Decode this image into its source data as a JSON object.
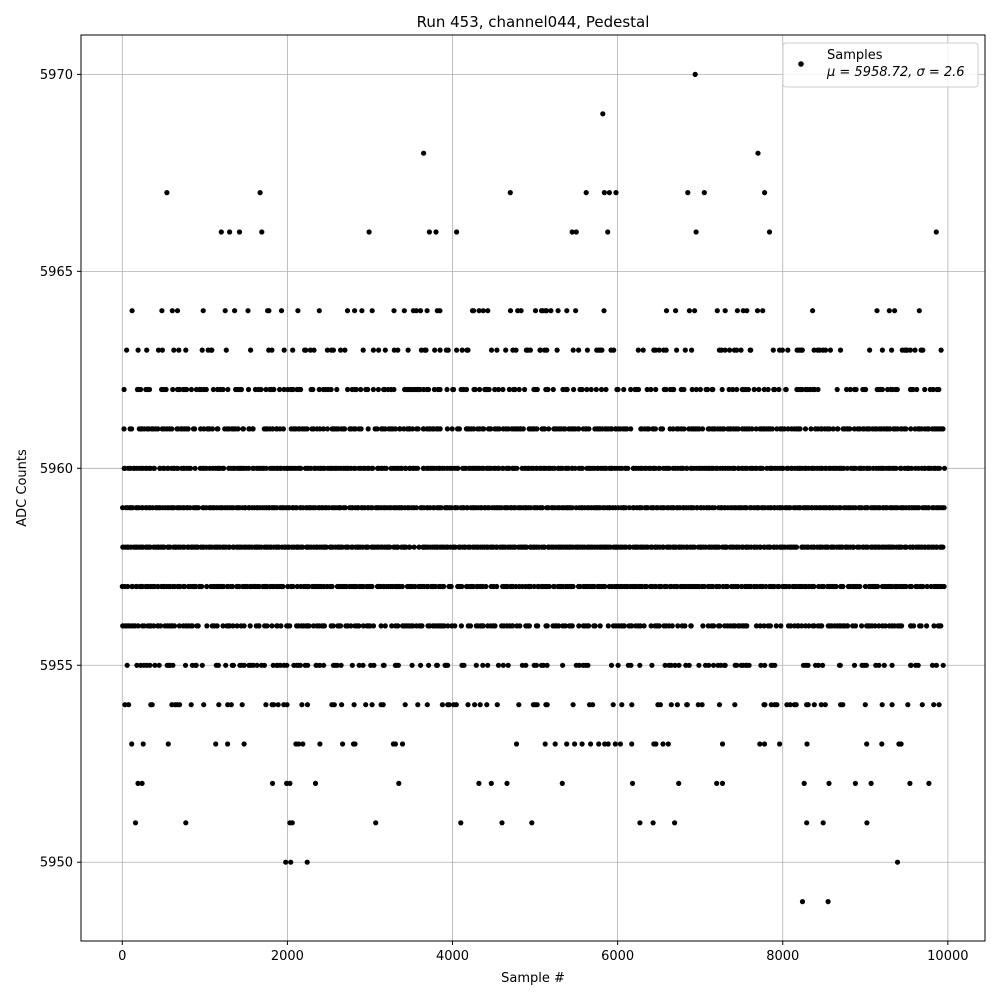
{
  "chart_data": {
    "type": "scatter",
    "title": "Run 453, channel044, Pedestal",
    "xlabel": "Sample #",
    "ylabel": "ADC Counts",
    "xlim": [
      -500,
      10450
    ],
    "ylim": [
      5948,
      5971
    ],
    "xticks": [
      0,
      2000,
      4000,
      6000,
      8000,
      10000
    ],
    "yticks": [
      5950,
      5955,
      5960,
      5965,
      5970
    ],
    "grid": true,
    "legend": {
      "placement": "top-right",
      "series_label": "Samples",
      "stats_label": "μ = 5958.72, σ = 2.6"
    },
    "marker_color": "#000000",
    "series": [
      {
        "name": "Samples",
        "n_samples": 10000,
        "mean": 5958.72,
        "sigma": 2.6,
        "dense_range": [
          5953,
          5964
        ],
        "outliers": [
          [
            540,
            5967
          ],
          [
            1670,
            5967
          ],
          [
            1690,
            5966
          ],
          [
            1200,
            5966
          ],
          [
            1300,
            5966
          ],
          [
            1420,
            5966
          ],
          [
            3650,
            5968
          ],
          [
            3720,
            5966
          ],
          [
            3800,
            5966
          ],
          [
            2990,
            5966
          ],
          [
            4050,
            5966
          ],
          [
            4700,
            5967
          ],
          [
            5820,
            5969
          ],
          [
            5840,
            5967
          ],
          [
            5900,
            5967
          ],
          [
            5980,
            5967
          ],
          [
            5620,
            5967
          ],
          [
            5450,
            5966
          ],
          [
            5500,
            5966
          ],
          [
            5880,
            5966
          ],
          [
            6940,
            5970
          ],
          [
            7700,
            5968
          ],
          [
            7780,
            5967
          ],
          [
            6850,
            5967
          ],
          [
            7050,
            5967
          ],
          [
            7840,
            5966
          ],
          [
            6950,
            5966
          ],
          [
            9860,
            5966
          ],
          [
            160,
            5951
          ],
          [
            770,
            5951
          ],
          [
            1980,
            5950
          ],
          [
            2040,
            5950
          ],
          [
            2240,
            5950
          ],
          [
            2030,
            5951
          ],
          [
            2060,
            5951
          ],
          [
            3070,
            5951
          ],
          [
            4100,
            5951
          ],
          [
            4600,
            5951
          ],
          [
            4960,
            5951
          ],
          [
            6270,
            5951
          ],
          [
            6430,
            5951
          ],
          [
            6690,
            5951
          ],
          [
            8290,
            5951
          ],
          [
            8490,
            5951
          ],
          [
            9020,
            5951
          ],
          [
            9390,
            5950
          ],
          [
            8240,
            5949
          ],
          [
            8550,
            5949
          ],
          [
            190,
            5952
          ],
          [
            240,
            5952
          ],
          [
            1820,
            5952
          ],
          [
            1990,
            5952
          ],
          [
            2030,
            5952
          ],
          [
            2340,
            5952
          ],
          [
            3350,
            5952
          ],
          [
            4320,
            5952
          ],
          [
            4470,
            5952
          ],
          [
            4660,
            5952
          ],
          [
            5330,
            5952
          ],
          [
            6180,
            5952
          ],
          [
            6740,
            5952
          ],
          [
            7200,
            5952
          ],
          [
            7270,
            5952
          ],
          [
            8260,
            5952
          ],
          [
            8560,
            5952
          ],
          [
            8880,
            5952
          ],
          [
            9070,
            5952
          ],
          [
            9540,
            5952
          ],
          [
            9770,
            5952
          ]
        ]
      }
    ]
  }
}
